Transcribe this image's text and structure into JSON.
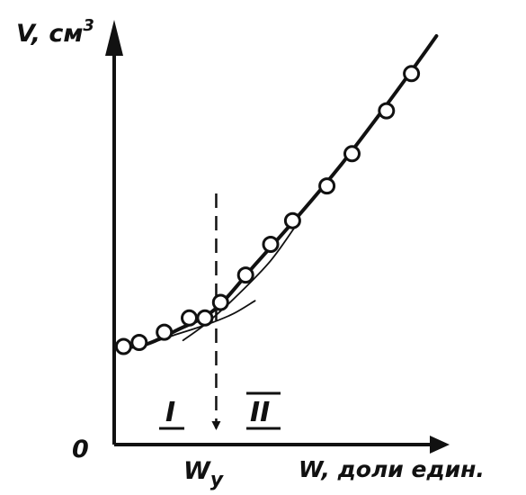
{
  "chart_data": {
    "type": "scatter",
    "title": "",
    "ylabel": "V, см",
    "ylabel_sup": "3",
    "xlabel": "W, доли един.",
    "origin_label": "0",
    "xmark_label": "W",
    "xmark_sub": "у",
    "region_labels": [
      "I",
      "II"
    ],
    "xlim": [
      0,
      1
    ],
    "ylim": [
      0,
      1
    ],
    "grid": false,
    "points": [
      {
        "x": 0.03,
        "y": 0.24
      },
      {
        "x": 0.08,
        "y": 0.25
      },
      {
        "x": 0.16,
        "y": 0.275
      },
      {
        "x": 0.24,
        "y": 0.31
      },
      {
        "x": 0.29,
        "y": 0.31
      },
      {
        "x": 0.34,
        "y": 0.348
      },
      {
        "x": 0.42,
        "y": 0.415
      },
      {
        "x": 0.5,
        "y": 0.49
      },
      {
        "x": 0.57,
        "y": 0.548
      },
      {
        "x": 0.68,
        "y": 0.633
      },
      {
        "x": 0.76,
        "y": 0.712
      },
      {
        "x": 0.87,
        "y": 0.817
      },
      {
        "x": 0.95,
        "y": 0.908
      }
    ],
    "curves": [
      {
        "id": "fit",
        "points": [
          [
            0.0,
            0.235
          ],
          [
            0.1,
            0.245
          ],
          [
            0.2,
            0.28
          ],
          [
            0.32,
            0.33
          ],
          [
            0.45,
            0.44
          ],
          [
            0.6,
            0.57
          ],
          [
            0.72,
            0.68
          ],
          [
            0.84,
            0.8
          ],
          [
            0.96,
            0.925
          ],
          [
            1.03,
            1.0
          ]
        ]
      },
      {
        "id": "branch-I",
        "points": [
          [
            0.04,
            0.235
          ],
          [
            0.12,
            0.25
          ],
          [
            0.2,
            0.27
          ],
          [
            0.3,
            0.295
          ],
          [
            0.38,
            0.32
          ],
          [
            0.45,
            0.352
          ]
        ]
      },
      {
        "id": "branch-II",
        "points": [
          [
            0.22,
            0.255
          ],
          [
            0.3,
            0.3
          ],
          [
            0.4,
            0.37
          ],
          [
            0.5,
            0.45
          ],
          [
            0.58,
            0.535
          ]
        ]
      }
    ],
    "marker_x": 0.326
  }
}
